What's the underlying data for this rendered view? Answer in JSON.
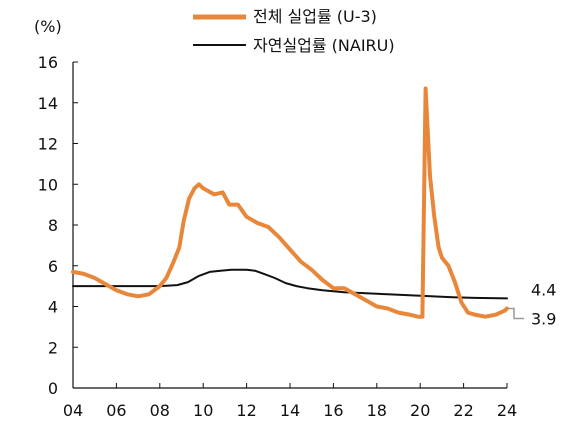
{
  "chart_data": {
    "type": "line",
    "title": "",
    "xlabel": "",
    "ylabel": "(%)",
    "xlim": [
      2004,
      2024
    ],
    "ylim": [
      0,
      16
    ],
    "x_ticks": [
      {
        "value": 2004,
        "label": "04"
      },
      {
        "value": 2006,
        "label": "06"
      },
      {
        "value": 2008,
        "label": "08"
      },
      {
        "value": 2010,
        "label": "10"
      },
      {
        "value": 2012,
        "label": "12"
      },
      {
        "value": 2014,
        "label": "14"
      },
      {
        "value": 2016,
        "label": "16"
      },
      {
        "value": 2018,
        "label": "18"
      },
      {
        "value": 2020,
        "label": "20"
      },
      {
        "value": 2022,
        "label": "22"
      },
      {
        "value": 2024,
        "label": "24"
      }
    ],
    "y_ticks": [
      {
        "value": 0,
        "label": "0"
      },
      {
        "value": 2,
        "label": "2"
      },
      {
        "value": 4,
        "label": "4"
      },
      {
        "value": 6,
        "label": "6"
      },
      {
        "value": 8,
        "label": "8"
      },
      {
        "value": 10,
        "label": "10"
      },
      {
        "value": 12,
        "label": "12"
      },
      {
        "value": 14,
        "label": "14"
      },
      {
        "value": 16,
        "label": "16"
      }
    ],
    "grid": false,
    "legend": "top-center",
    "series": [
      {
        "name": "전체 실업률 (U-3)",
        "color": "#E8873A",
        "end_label": "3.9",
        "points": [
          [
            2004.0,
            5.7
          ],
          [
            2004.5,
            5.6
          ],
          [
            2005.0,
            5.4
          ],
          [
            2005.5,
            5.1
          ],
          [
            2006.0,
            4.8
          ],
          [
            2006.5,
            4.6
          ],
          [
            2007.0,
            4.5
          ],
          [
            2007.5,
            4.6
          ],
          [
            2008.0,
            5.0
          ],
          [
            2008.3,
            5.4
          ],
          [
            2008.6,
            6.1
          ],
          [
            2008.9,
            6.9
          ],
          [
            2009.1,
            8.2
          ],
          [
            2009.35,
            9.3
          ],
          [
            2009.6,
            9.8
          ],
          [
            2009.8,
            10.0
          ],
          [
            2010.0,
            9.8
          ],
          [
            2010.5,
            9.5
          ],
          [
            2010.9,
            9.6
          ],
          [
            2011.2,
            9.0
          ],
          [
            2011.6,
            9.0
          ],
          [
            2012.0,
            8.4
          ],
          [
            2012.5,
            8.1
          ],
          [
            2013.0,
            7.9
          ],
          [
            2013.5,
            7.4
          ],
          [
            2014.0,
            6.8
          ],
          [
            2014.5,
            6.2
          ],
          [
            2015.0,
            5.8
          ],
          [
            2015.5,
            5.3
          ],
          [
            2016.0,
            4.9
          ],
          [
            2016.5,
            4.9
          ],
          [
            2017.0,
            4.6
          ],
          [
            2017.5,
            4.3
          ],
          [
            2018.0,
            4.0
          ],
          [
            2018.5,
            3.9
          ],
          [
            2019.0,
            3.7
          ],
          [
            2019.5,
            3.6
          ],
          [
            2019.9,
            3.5
          ],
          [
            2020.1,
            3.5
          ],
          [
            2020.25,
            14.7
          ],
          [
            2020.45,
            10.4
          ],
          [
            2020.65,
            8.4
          ],
          [
            2020.85,
            6.9
          ],
          [
            2021.0,
            6.4
          ],
          [
            2021.3,
            6.0
          ],
          [
            2021.6,
            5.2
          ],
          [
            2021.9,
            4.2
          ],
          [
            2022.2,
            3.7
          ],
          [
            2022.5,
            3.6
          ],
          [
            2023.0,
            3.5
          ],
          [
            2023.5,
            3.6
          ],
          [
            2023.9,
            3.8
          ],
          [
            2024.0,
            3.9
          ]
        ]
      },
      {
        "name": "자연실업률 (NAIRU)",
        "color": "#111111",
        "end_label": "4.4",
        "points": [
          [
            2004.0,
            5.0
          ],
          [
            2005.0,
            5.0
          ],
          [
            2006.0,
            5.0
          ],
          [
            2007.0,
            5.0
          ],
          [
            2008.0,
            5.0
          ],
          [
            2008.8,
            5.05
          ],
          [
            2009.3,
            5.2
          ],
          [
            2009.8,
            5.5
          ],
          [
            2010.3,
            5.7
          ],
          [
            2010.8,
            5.75
          ],
          [
            2011.3,
            5.8
          ],
          [
            2011.8,
            5.8
          ],
          [
            2012.0,
            5.8
          ],
          [
            2012.4,
            5.75
          ],
          [
            2012.8,
            5.6
          ],
          [
            2013.3,
            5.4
          ],
          [
            2013.8,
            5.15
          ],
          [
            2014.3,
            5.0
          ],
          [
            2014.8,
            4.9
          ],
          [
            2015.5,
            4.8
          ],
          [
            2016.5,
            4.7
          ],
          [
            2017.5,
            4.65
          ],
          [
            2018.5,
            4.6
          ],
          [
            2019.5,
            4.55
          ],
          [
            2020.5,
            4.5
          ],
          [
            2021.5,
            4.45
          ],
          [
            2022.5,
            4.42
          ],
          [
            2024.0,
            4.4
          ]
        ]
      }
    ]
  }
}
